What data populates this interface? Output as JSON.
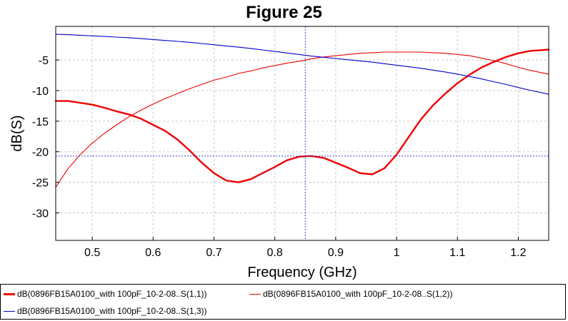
{
  "chart_data": {
    "type": "line",
    "title": "Figure 25",
    "xlabel": "Frequency (GHz)",
    "ylabel": "dB(S)",
    "xlim": [
      0.44,
      1.25
    ],
    "ylim": [
      -34.5,
      0.5
    ],
    "xticks": [
      0.5,
      0.6,
      0.7,
      0.8,
      0.9,
      1,
      1.1,
      1.2
    ],
    "xtick_labels": [
      "0.5",
      "0.6",
      "0.7",
      "0.8",
      "0.9",
      "1",
      "1.1",
      "1.2"
    ],
    "yticks": [
      -5,
      -10,
      -15,
      -20,
      -25,
      -30
    ],
    "ytick_labels": [
      "-5",
      "-10",
      "-15",
      "-20",
      "-25",
      "-30"
    ],
    "grid": true,
    "legend_position": "bottom",
    "marker": {
      "x": 0.85,
      "y": -20.7
    },
    "series": [
      {
        "name": "dB(0896FB15A0100_with 100pF_10-2-08..S(1,1))",
        "color": "#ee0000",
        "thick": true,
        "x": [
          0.44,
          0.46,
          0.48,
          0.5,
          0.52,
          0.54,
          0.56,
          0.58,
          0.6,
          0.62,
          0.64,
          0.66,
          0.68,
          0.7,
          0.72,
          0.74,
          0.76,
          0.78,
          0.8,
          0.82,
          0.84,
          0.86,
          0.88,
          0.9,
          0.92,
          0.94,
          0.96,
          0.98,
          1.0,
          1.02,
          1.04,
          1.06,
          1.08,
          1.1,
          1.12,
          1.14,
          1.16,
          1.18,
          1.2,
          1.22,
          1.25
        ],
        "y": [
          -11.7,
          -11.7,
          -12.0,
          -12.3,
          -12.8,
          -13.4,
          -13.9,
          -14.6,
          -15.6,
          -16.6,
          -18.0,
          -19.8,
          -21.8,
          -23.5,
          -24.7,
          -25.0,
          -24.5,
          -23.5,
          -22.5,
          -21.4,
          -20.8,
          -20.7,
          -21.0,
          -21.8,
          -22.6,
          -23.5,
          -23.7,
          -22.7,
          -20.5,
          -17.6,
          -14.7,
          -12.4,
          -10.5,
          -8.8,
          -7.4,
          -6.2,
          -5.3,
          -4.5,
          -3.9,
          -3.5,
          -3.3
        ]
      },
      {
        "name": "dB(0896FB15A0100_with 100pF_10-2-08..S(1,2))",
        "color": "#ee0000",
        "thick": false,
        "x": [
          0.44,
          0.46,
          0.48,
          0.5,
          0.52,
          0.54,
          0.56,
          0.58,
          0.6,
          0.62,
          0.64,
          0.66,
          0.68,
          0.7,
          0.72,
          0.74,
          0.76,
          0.78,
          0.8,
          0.82,
          0.84,
          0.86,
          0.88,
          0.9,
          0.92,
          0.94,
          0.96,
          0.98,
          1.0,
          1.02,
          1.04,
          1.06,
          1.08,
          1.1,
          1.12,
          1.14,
          1.16,
          1.18,
          1.2,
          1.22,
          1.25
        ],
        "y": [
          -25.8,
          -22.8,
          -20.5,
          -18.6,
          -17.0,
          -15.6,
          -14.3,
          -13.2,
          -12.2,
          -11.3,
          -10.5,
          -9.7,
          -9.0,
          -8.3,
          -7.8,
          -7.2,
          -6.8,
          -6.3,
          -5.9,
          -5.5,
          -5.2,
          -4.8,
          -4.5,
          -4.3,
          -4.1,
          -3.9,
          -3.8,
          -3.7,
          -3.7,
          -3.7,
          -3.7,
          -3.8,
          -3.9,
          -4.1,
          -4.3,
          -4.7,
          -5.1,
          -5.6,
          -6.2,
          -6.7,
          -7.3
        ]
      },
      {
        "name": "dB(0896FB15A0100_with 100pF_10-2-08..S(1,3))",
        "color": "#0000cc",
        "thick": false,
        "x": [
          0.44,
          0.46,
          0.48,
          0.5,
          0.52,
          0.54,
          0.56,
          0.58,
          0.6,
          0.62,
          0.64,
          0.66,
          0.68,
          0.7,
          0.72,
          0.74,
          0.76,
          0.78,
          0.8,
          0.82,
          0.84,
          0.86,
          0.88,
          0.9,
          0.92,
          0.94,
          0.96,
          0.98,
          1.0,
          1.02,
          1.04,
          1.06,
          1.08,
          1.1,
          1.12,
          1.14,
          1.16,
          1.18,
          1.2,
          1.22,
          1.25
        ],
        "y": [
          -0.8,
          -0.85,
          -0.95,
          -1.05,
          -1.15,
          -1.25,
          -1.35,
          -1.5,
          -1.65,
          -1.8,
          -1.95,
          -2.1,
          -2.3,
          -2.5,
          -2.7,
          -2.9,
          -3.1,
          -3.35,
          -3.6,
          -3.85,
          -4.1,
          -4.35,
          -4.55,
          -4.75,
          -4.95,
          -5.15,
          -5.35,
          -5.6,
          -5.85,
          -6.1,
          -6.35,
          -6.65,
          -6.95,
          -7.3,
          -7.7,
          -8.1,
          -8.55,
          -9.0,
          -9.5,
          -9.95,
          -10.6
        ]
      }
    ]
  }
}
